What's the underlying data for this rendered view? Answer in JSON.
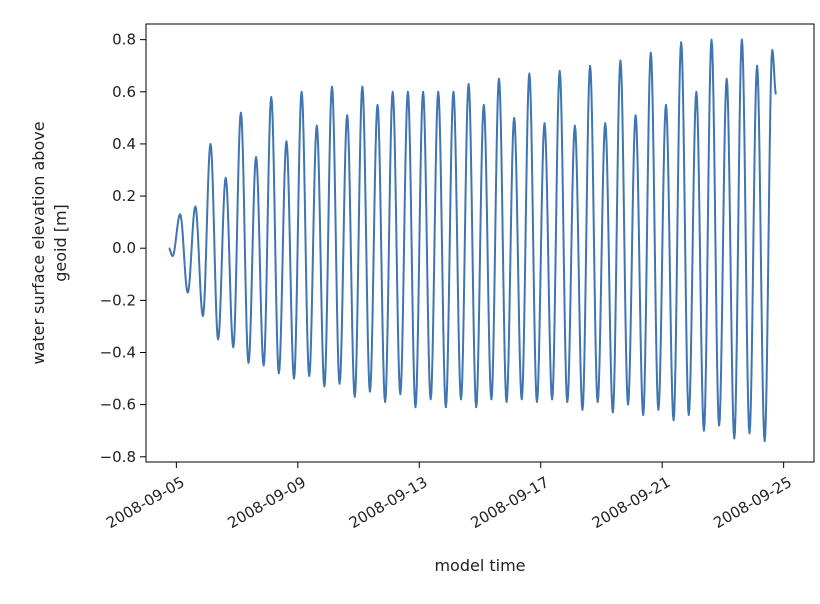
{
  "chart_data": {
    "type": "line",
    "title": "",
    "xlabel": "model time",
    "ylabel_lines": [
      "water surface elevation above",
      "geoid [m]"
    ],
    "x_range": [
      "2008-09-04",
      "2008-09-26"
    ],
    "ylim": [
      -0.82,
      0.86
    ],
    "grid": false,
    "legend": "none",
    "x_tick_labels": [
      "2008-09-05",
      "2008-09-09",
      "2008-09-13",
      "2008-09-17",
      "2008-09-21",
      "2008-09-25"
    ],
    "x_ticks": [
      "2008-09-05",
      "2008-09-09",
      "2008-09-13",
      "2008-09-17",
      "2008-09-21",
      "2008-09-25"
    ],
    "y_ticks": [
      0.8,
      0.6,
      0.4,
      0.2,
      0.0,
      -0.2,
      -0.4,
      -0.6,
      -0.8
    ],
    "y_tick_labels": [
      "0.8",
      "0.6",
      "0.4",
      "0.2",
      "0.0",
      "−0.2",
      "−0.4",
      "−0.6",
      "−0.8"
    ],
    "series": [
      {
        "color": "#3f75b0",
        "start": "2008-09-04 18:00",
        "end": "2008-09-24 18:00",
        "x": [
          "2008-09-04 18:00",
          "2008-09-04 21:00",
          "2008-09-05 03:00",
          "2008-09-05 09:00",
          "2008-09-05 15:00",
          "2008-09-05 21:00",
          "2008-09-06 03:00",
          "2008-09-06 09:00",
          "2008-09-06 15:00",
          "2008-09-06 21:00",
          "2008-09-07 03:00",
          "2008-09-07 09:00",
          "2008-09-07 15:00",
          "2008-09-07 21:00",
          "2008-09-08 03:00",
          "2008-09-08 09:00",
          "2008-09-08 15:00",
          "2008-09-08 21:00",
          "2008-09-09 03:00",
          "2008-09-09 09:00",
          "2008-09-09 15:00",
          "2008-09-09 21:00",
          "2008-09-10 03:00",
          "2008-09-10 09:00",
          "2008-09-10 15:00",
          "2008-09-10 21:00",
          "2008-09-11 03:00",
          "2008-09-11 09:00",
          "2008-09-11 15:00",
          "2008-09-11 21:00",
          "2008-09-12 03:00",
          "2008-09-12 09:00",
          "2008-09-12 15:00",
          "2008-09-12 21:00",
          "2008-09-13 03:00",
          "2008-09-13 09:00",
          "2008-09-13 15:00",
          "2008-09-13 21:00",
          "2008-09-14 03:00",
          "2008-09-14 09:00",
          "2008-09-14 15:00",
          "2008-09-14 21:00",
          "2008-09-15 03:00",
          "2008-09-15 09:00",
          "2008-09-15 15:00",
          "2008-09-15 21:00",
          "2008-09-16 03:00",
          "2008-09-16 09:00",
          "2008-09-16 15:00",
          "2008-09-16 21:00",
          "2008-09-17 03:00",
          "2008-09-17 09:00",
          "2008-09-17 15:00",
          "2008-09-17 21:00",
          "2008-09-18 03:00",
          "2008-09-18 09:00",
          "2008-09-18 15:00",
          "2008-09-18 21:00",
          "2008-09-19 03:00",
          "2008-09-19 09:00",
          "2008-09-19 15:00",
          "2008-09-19 21:00",
          "2008-09-20 03:00",
          "2008-09-20 09:00",
          "2008-09-20 15:00",
          "2008-09-20 21:00",
          "2008-09-21 03:00",
          "2008-09-21 09:00",
          "2008-09-21 15:00",
          "2008-09-21 21:00",
          "2008-09-22 03:00",
          "2008-09-22 09:00",
          "2008-09-22 15:00",
          "2008-09-22 21:00",
          "2008-09-23 03:00",
          "2008-09-23 09:00",
          "2008-09-23 15:00",
          "2008-09-23 21:00",
          "2008-09-24 03:00",
          "2008-09-24 09:00",
          "2008-09-24 15:00",
          "2008-09-24 18:00"
        ],
        "y": [
          0.0,
          -0.03,
          0.13,
          -0.17,
          0.16,
          -0.26,
          0.4,
          -0.35,
          0.27,
          -0.38,
          0.52,
          -0.44,
          0.35,
          -0.45,
          0.58,
          -0.48,
          0.41,
          -0.5,
          0.6,
          -0.49,
          0.47,
          -0.53,
          0.62,
          -0.52,
          0.51,
          -0.57,
          0.62,
          -0.55,
          0.55,
          -0.59,
          0.6,
          -0.56,
          0.6,
          -0.61,
          0.6,
          -0.58,
          0.6,
          -0.61,
          0.6,
          -0.58,
          0.63,
          -0.61,
          0.55,
          -0.58,
          0.65,
          -0.59,
          0.5,
          -0.58,
          0.67,
          -0.59,
          0.48,
          -0.58,
          0.68,
          -0.59,
          0.47,
          -0.62,
          0.7,
          -0.59,
          0.48,
          -0.63,
          0.72,
          -0.6,
          0.51,
          -0.64,
          0.75,
          -0.62,
          0.55,
          -0.66,
          0.79,
          -0.64,
          0.6,
          -0.7,
          0.8,
          -0.68,
          0.65,
          -0.73,
          0.8,
          -0.71,
          0.7,
          -0.74,
          0.76,
          0.59
        ]
      }
    ]
  }
}
